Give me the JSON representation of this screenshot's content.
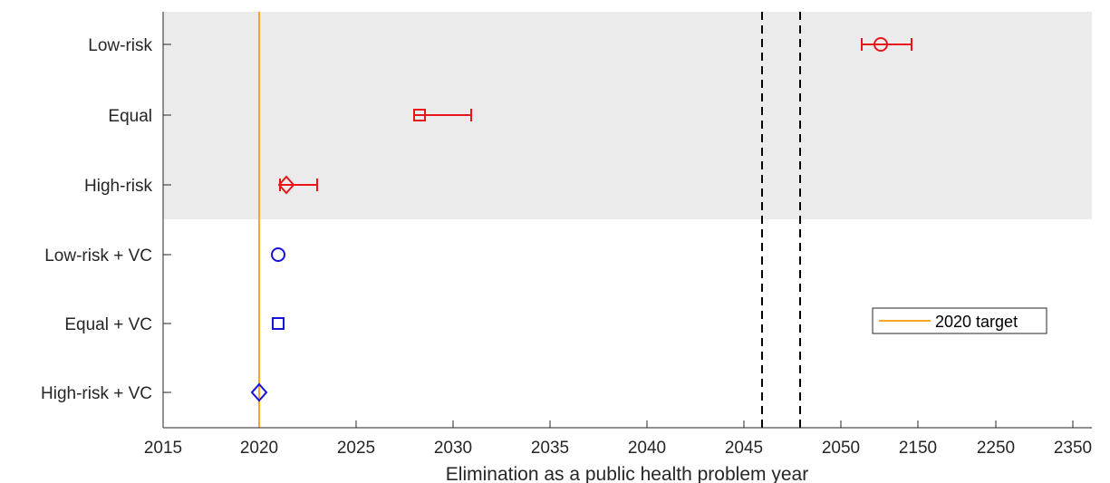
{
  "chart_data": {
    "type": "scatter",
    "title": "",
    "xlabel": "Elimination as a public health problem year",
    "ylabel": "",
    "categories": [
      "Low-risk",
      "Equal",
      "High-risk",
      "Low-risk + VC",
      "Equal + VC",
      "High-risk + VC"
    ],
    "x_tick_labels": [
      "2015",
      "2020",
      "2025",
      "2030",
      "2035",
      "2040",
      "2045",
      "2050",
      "2150",
      "2250",
      "2350"
    ],
    "x_axis_note": "broken axis: linear 2015-2045 and 2050-2150+ segments separated by dashed break lines",
    "shaded_region": {
      "categories": [
        "Low-risk",
        "Equal",
        "High-risk"
      ],
      "color": "#ebebeb"
    },
    "reference_line": {
      "x": 2020,
      "label": "2020 target",
      "color": "#f5a623"
    },
    "legend": {
      "position": "right",
      "entries": [
        "2020 target"
      ]
    },
    "grid": false,
    "series": [
      {
        "group": "no-vc",
        "color": "#e8161b",
        "points": [
          {
            "category": "Low-risk",
            "x": 2110,
            "x_low": 2085,
            "x_high": 2145,
            "marker": "circle"
          },
          {
            "category": "Equal",
            "x": 2028.4,
            "x_low": 2028.1,
            "x_high": 2031,
            "marker": "square"
          },
          {
            "category": "High-risk",
            "x": 2021.4,
            "x_low": 2021.1,
            "x_high": 2023,
            "marker": "diamond"
          }
        ]
      },
      {
        "group": "vc",
        "color": "#1212d8",
        "points": [
          {
            "category": "Low-risk + VC",
            "x": 2021,
            "marker": "circle"
          },
          {
            "category": "Equal + VC",
            "x": 2021,
            "marker": "square"
          },
          {
            "category": "High-risk + VC",
            "x": 2020,
            "marker": "diamond"
          }
        ]
      }
    ]
  }
}
